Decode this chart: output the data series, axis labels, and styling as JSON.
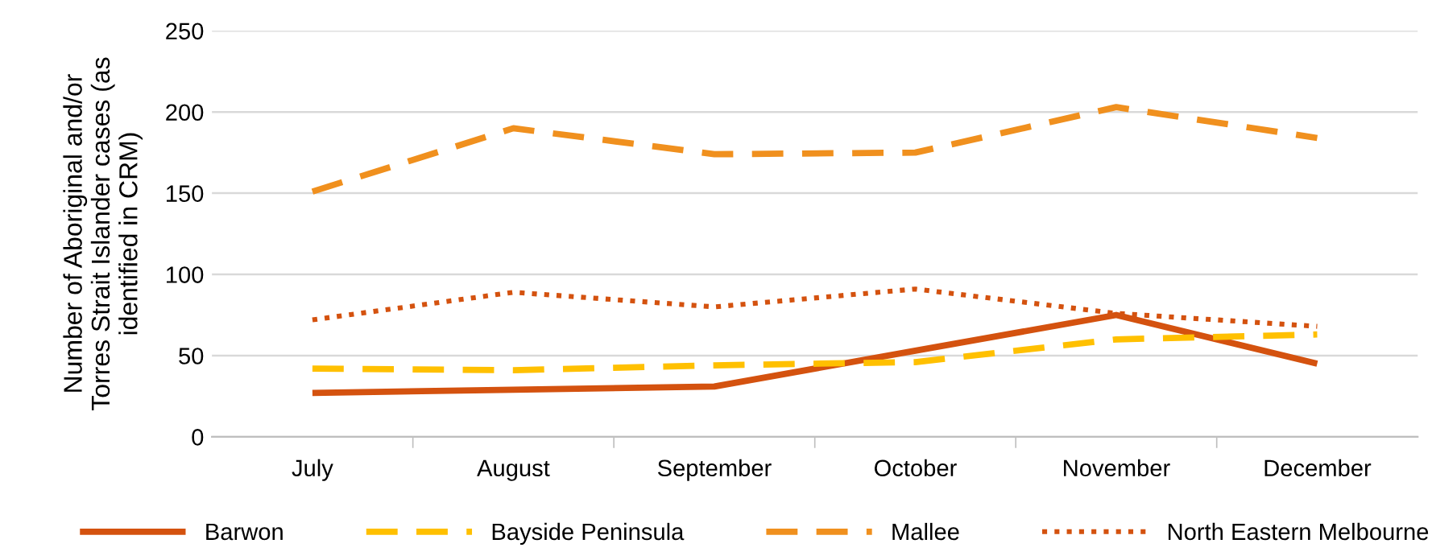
{
  "chart_data": {
    "type": "line",
    "ylabel": "Number of Aboriginal and/or\nTorres Strait Islander cases (as\nidentified in CRM)",
    "categories": [
      "July",
      "August",
      "September",
      "October",
      "November",
      "December"
    ],
    "series": [
      {
        "name": "Barwon",
        "color": "#d4520f",
        "line_style": "solid",
        "values": [
          27,
          29,
          31,
          53,
          75,
          45
        ]
      },
      {
        "name": "Bayside Peninsula",
        "color": "#ffc000",
        "line_style": "dashed",
        "values": [
          42,
          41,
          44,
          46,
          60,
          63
        ]
      },
      {
        "name": "Mallee",
        "color": "#f0901e",
        "line_style": "dashed",
        "values": [
          151,
          190,
          174,
          175,
          203,
          184
        ]
      },
      {
        "name": "North Eastern Melbourne",
        "color": "#d4520f",
        "line_style": "dotted",
        "values": [
          72,
          89,
          80,
          91,
          76,
          68
        ]
      }
    ],
    "ylim": [
      0,
      250
    ],
    "yticks": [
      0,
      50,
      100,
      150,
      200,
      250
    ],
    "grid": "y",
    "legend": "bottom",
    "marker": "none"
  }
}
